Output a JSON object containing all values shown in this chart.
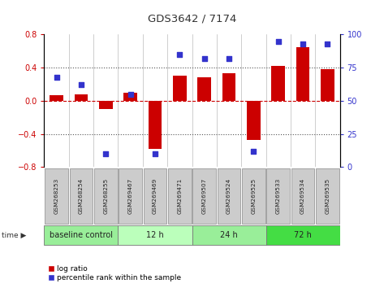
{
  "title": "GDS3642 / 7174",
  "samples": [
    "GSM268253",
    "GSM268254",
    "GSM268255",
    "GSM269467",
    "GSM269469",
    "GSM269471",
    "GSM269507",
    "GSM269524",
    "GSM269525",
    "GSM269533",
    "GSM269534",
    "GSM269535"
  ],
  "log_ratio": [
    0.07,
    0.08,
    -0.1,
    0.1,
    -0.58,
    0.3,
    0.28,
    0.33,
    -0.47,
    0.42,
    0.65,
    0.38
  ],
  "percentile_rank": [
    68,
    62,
    10,
    55,
    10,
    85,
    82,
    82,
    12,
    95,
    93,
    93
  ],
  "bar_color": "#cc0000",
  "dot_color": "#3333cc",
  "hline_color": "#cc0000",
  "ylim_left": [
    -0.8,
    0.8
  ],
  "ylim_right": [
    0,
    100
  ],
  "yticks_left": [
    -0.8,
    -0.4,
    0.0,
    0.4,
    0.8
  ],
  "yticks_right": [
    0,
    25,
    50,
    75,
    100
  ],
  "dotted_lines": [
    -0.4,
    0.4
  ],
  "groups": [
    {
      "label": "baseline control",
      "start": 0,
      "end": 3,
      "color": "#99ee99"
    },
    {
      "label": "12 h",
      "start": 3,
      "end": 6,
      "color": "#bbffbb"
    },
    {
      "label": "24 h",
      "start": 6,
      "end": 9,
      "color": "#99ee99"
    },
    {
      "label": "72 h",
      "start": 9,
      "end": 12,
      "color": "#44dd44"
    }
  ],
  "legend_bar_label": "log ratio",
  "legend_dot_label": "percentile rank within the sample",
  "tick_color_left": "#cc0000",
  "tick_color_right": "#3333cc",
  "sample_box_color": "#cccccc",
  "sample_box_edge": "#888888"
}
